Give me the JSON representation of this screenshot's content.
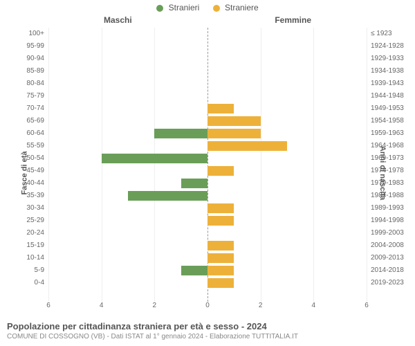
{
  "legend": {
    "m_label": "Stranieri",
    "f_label": "Straniere"
  },
  "headers": {
    "left": "Maschi",
    "right": "Femmine"
  },
  "y_title_left": "Fasce di età",
  "y_title_right": "Anni di nascita",
  "title": "Popolazione per cittadinanza straniera per età e sesso - 2024",
  "subtitle": "COMUNE DI COSSOGNO (VB) - Dati ISTAT al 1° gennaio 2024 - Elaborazione TUTTITALIA.IT",
  "chart": {
    "type": "bar-pyramid",
    "xlim": 6,
    "xtick_step": 2,
    "bar_color_m": "#6a9e58",
    "bar_color_f": "#edb13a",
    "grid_color": "#eeeeee",
    "zero_dash_color": "#999999",
    "bg": "#ffffff",
    "label_fontsize": 10,
    "title_fontsize": 13,
    "rows": [
      {
        "age": "100+",
        "birth": "≤ 1923",
        "m": 0,
        "f": 0
      },
      {
        "age": "95-99",
        "birth": "1924-1928",
        "m": 0,
        "f": 0
      },
      {
        "age": "90-94",
        "birth": "1929-1933",
        "m": 0,
        "f": 0
      },
      {
        "age": "85-89",
        "birth": "1934-1938",
        "m": 0,
        "f": 0
      },
      {
        "age": "80-84",
        "birth": "1939-1943",
        "m": 0,
        "f": 0
      },
      {
        "age": "75-79",
        "birth": "1944-1948",
        "m": 0,
        "f": 0
      },
      {
        "age": "70-74",
        "birth": "1949-1953",
        "m": 0,
        "f": 1
      },
      {
        "age": "65-69",
        "birth": "1954-1958",
        "m": 0,
        "f": 2
      },
      {
        "age": "60-64",
        "birth": "1959-1963",
        "m": 2,
        "f": 2
      },
      {
        "age": "55-59",
        "birth": "1964-1968",
        "m": 0,
        "f": 3
      },
      {
        "age": "50-54",
        "birth": "1969-1973",
        "m": 4,
        "f": 0
      },
      {
        "age": "45-49",
        "birth": "1974-1978",
        "m": 0,
        "f": 1
      },
      {
        "age": "40-44",
        "birth": "1979-1983",
        "m": 1,
        "f": 0
      },
      {
        "age": "35-39",
        "birth": "1984-1988",
        "m": 3,
        "f": 0
      },
      {
        "age": "30-34",
        "birth": "1989-1993",
        "m": 0,
        "f": 1
      },
      {
        "age": "25-29",
        "birth": "1994-1998",
        "m": 0,
        "f": 1
      },
      {
        "age": "20-24",
        "birth": "1999-2003",
        "m": 0,
        "f": 0
      },
      {
        "age": "15-19",
        "birth": "2004-2008",
        "m": 0,
        "f": 1
      },
      {
        "age": "10-14",
        "birth": "2009-2013",
        "m": 0,
        "f": 1
      },
      {
        "age": "5-9",
        "birth": "2014-2018",
        "m": 1,
        "f": 1
      },
      {
        "age": "0-4",
        "birth": "2019-2023",
        "m": 0,
        "f": 1
      }
    ]
  }
}
